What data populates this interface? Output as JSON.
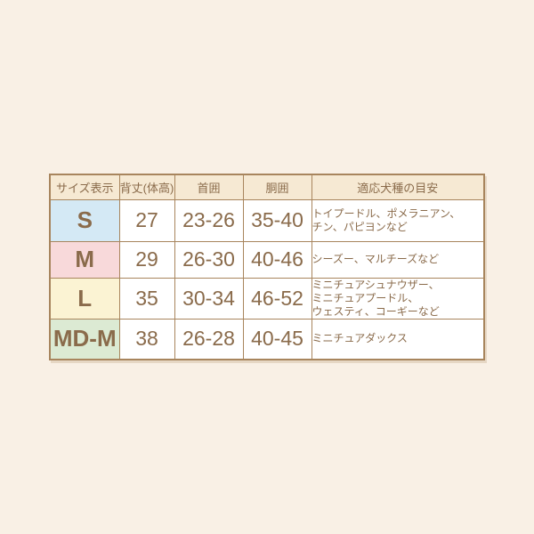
{
  "page": {
    "background_color": "#f9f0e5",
    "border_color": "#a8855d",
    "text_color": "#8a6b4b",
    "header_bg_color": "#f6e9d3"
  },
  "table": {
    "headers": [
      "サイズ表示",
      "背丈(体高)",
      "首囲",
      "胴囲",
      "適応犬種の目安"
    ],
    "rows": [
      {
        "size": "S",
        "color": "#d4e9f5",
        "back_height": "27",
        "neck": "23-26",
        "girth": "35-40",
        "breeds": "トイプードル、ポメラニアン、\nチン、パピヨンなど"
      },
      {
        "size": "M",
        "color": "#f8d9da",
        "back_height": "29",
        "neck": "26-30",
        "girth": "40-46",
        "breeds": "シーズー、マルチーズなど"
      },
      {
        "size": "L",
        "color": "#fbf3d3",
        "back_height": "35",
        "neck": "30-34",
        "girth": "46-52",
        "breeds": "ミニチュアシュナウザー、\nミニチュアプードル、\nウェスティ、コーギーなど"
      },
      {
        "size": "MD-M",
        "color": "#dcead3",
        "back_height": "38",
        "neck": "26-28",
        "girth": "40-45",
        "breeds": "ミニチュアダックス"
      }
    ]
  },
  "chart_data": {
    "type": "table",
    "title": "",
    "columns": [
      "サイズ表示",
      "背丈(体高)",
      "首囲",
      "胴囲",
      "適応犬種の目安"
    ],
    "rows": [
      [
        "S",
        27,
        "23-26",
        "35-40",
        "トイプードル、ポメラニアン、チン、パピヨンなど"
      ],
      [
        "M",
        29,
        "26-30",
        "40-46",
        "シーズー、マルチーズなど"
      ],
      [
        "L",
        35,
        "30-34",
        "46-52",
        "ミニチュアシュナウザー、ミニチュアプードル、ウェスティ、コーギーなど"
      ],
      [
        "MD-M",
        38,
        "26-28",
        "40-45",
        "ミニチュアダックス"
      ]
    ]
  }
}
